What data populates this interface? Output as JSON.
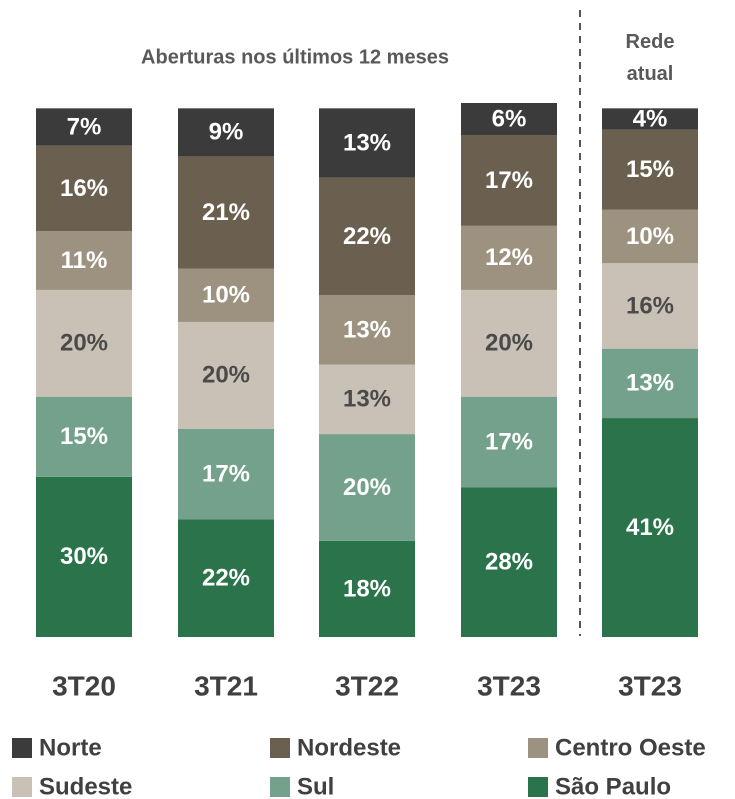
{
  "chart_data": {
    "type": "bar",
    "stacked": true,
    "annotations": [
      "Aberturas nos últimos 12 meses",
      "Rede atual"
    ],
    "categories": [
      "3T20",
      "3T21",
      "3T22",
      "3T23",
      "3T23"
    ],
    "ylim": [
      0,
      100
    ],
    "series": [
      {
        "name": "Norte",
        "color": "#3b3b3b",
        "label_color": "#ffffff",
        "values": [
          7,
          9,
          13,
          6,
          4
        ],
        "value_labels": [
          "7%",
          "9%",
          "13%",
          "6%",
          "4%"
        ]
      },
      {
        "name": "Nordeste",
        "color": "#6b5f4f",
        "label_color": "#ffffff",
        "values": [
          16,
          21,
          22,
          17,
          15
        ],
        "value_labels": [
          "16%",
          "21%",
          "22%",
          "17%",
          "15%"
        ]
      },
      {
        "name": "Centro Oeste",
        "color": "#9c927f",
        "label_color": "#ffffff",
        "values": [
          11,
          10,
          13,
          12,
          10
        ],
        "value_labels": [
          "11%",
          "10%",
          "13%",
          "12%",
          "10%"
        ]
      },
      {
        "name": "Sudeste",
        "color": "#c9c1b5",
        "label_color": "#4a4a4a",
        "values": [
          20,
          20,
          13,
          20,
          16
        ],
        "value_labels": [
          "20%",
          "20%",
          "13%",
          "20%",
          "16%"
        ]
      },
      {
        "name": "Sul",
        "color": "#74a18b",
        "label_color": "#ffffff",
        "values": [
          15,
          17,
          20,
          17,
          13
        ],
        "value_labels": [
          "15%",
          "17%",
          "20%",
          "17%",
          "13%"
        ]
      },
      {
        "name": "São Paulo",
        "color": "#2b744b",
        "label_color": "#ffffff",
        "values": [
          30,
          22,
          18,
          28,
          41
        ],
        "value_labels": [
          "30%",
          "22%",
          "18%",
          "28%",
          "41%"
        ]
      }
    ]
  }
}
